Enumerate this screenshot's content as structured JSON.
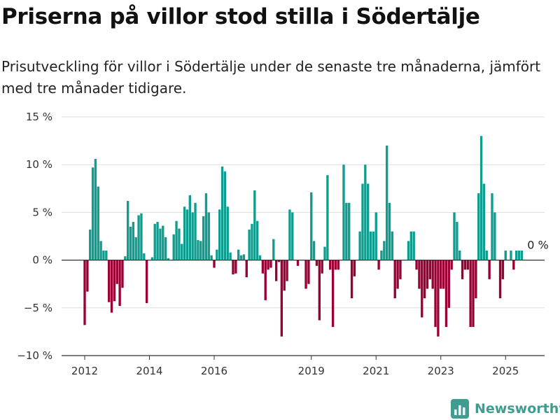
{
  "header": {
    "title": "Priserna på villor stod stilla i Södertälje",
    "subtitle": "Prisutveckling för villor i Södertälje under de senaste tre månaderna, jämfört med tre månader tidigare."
  },
  "brand": {
    "name": "Newsworthy",
    "icon": "bar-chart-logo-icon"
  },
  "colors": {
    "positive": "#109c8f",
    "negative": "#990033",
    "grid": "#dddddd",
    "zero": "#333333"
  },
  "chart_data": {
    "type": "bar",
    "title": "Priserna på villor stod stilla i Södertälje",
    "xlabel": "",
    "ylabel": "",
    "ylim": [
      -10,
      15
    ],
    "yticks": [
      -10,
      -5,
      0,
      5,
      10,
      15
    ],
    "ytick_labels": [
      "−10 %",
      "−5 %",
      "0 %",
      "5 %",
      "10 %",
      "15 %"
    ],
    "xticks": [
      2012,
      2014,
      2016,
      2019,
      2021,
      2023,
      2025
    ],
    "xtick_labels": [
      "2012",
      "2014",
      "2016",
      "2019",
      "2021",
      "2023",
      "2025"
    ],
    "x_start": "2012-01",
    "frequency": "monthly",
    "grid": true,
    "annotation": {
      "text": "0 %",
      "month": "2025-08",
      "value": 0
    },
    "values": [
      -6.8,
      -3.3,
      3.2,
      9.7,
      10.6,
      7.7,
      2.0,
      1.0,
      1.0,
      -4.4,
      -5.5,
      -4.3,
      -2.5,
      -4.8,
      -2.9,
      0.4,
      6.2,
      3.5,
      4.0,
      2.4,
      4.7,
      4.9,
      0.7,
      -4.5,
      0.0,
      0.3,
      3.8,
      4.0,
      3.3,
      3.6,
      2.4,
      0.2,
      0.0,
      2.7,
      4.1,
      3.3,
      1.7,
      5.6,
      5.3,
      6.8,
      5.0,
      6.0,
      2.1,
      2.0,
      4.6,
      7.0,
      5.0,
      0.5,
      -0.8,
      1.1,
      5.3,
      9.8,
      9.3,
      5.6,
      0.8,
      -1.5,
      -1.4,
      1.1,
      0.5,
      0.6,
      -1.8,
      3.2,
      3.8,
      7.3,
      4.1,
      0.5,
      -1.4,
      -4.2,
      -1.0,
      -0.8,
      2.2,
      -2.2,
      -0.2,
      -8.0,
      -3.2,
      -2.2,
      5.3,
      5.0,
      0.0,
      -0.6,
      0.0,
      0.0,
      -3.0,
      -2.5,
      7.1,
      2.0,
      -0.6,
      -6.3,
      -1.4,
      1.4,
      8.9,
      -1.0,
      -7.0,
      -1.0,
      -1.0,
      0.0,
      10.0,
      6.0,
      6.0,
      -4.0,
      -1.7,
      0.0,
      3.0,
      8.0,
      10.0,
      8.0,
      3.0,
      3.0,
      5.0,
      -1.0,
      1.0,
      2.0,
      12.0,
      6.0,
      3.0,
      -4.0,
      -3.0,
      -2.0,
      0.0,
      0.0,
      2.0,
      3.0,
      3.0,
      -1.0,
      -3.0,
      -6.0,
      -4.0,
      -3.0,
      -2.0,
      -3.0,
      -7.0,
      -8.0,
      -3.0,
      -3.0,
      -7.0,
      -5.0,
      -1.0,
      5.0,
      4.0,
      1.0,
      -2.0,
      -1.0,
      -1.0,
      -7.0,
      -7.0,
      -4.0,
      7.0,
      13.0,
      8.0,
      1.0,
      -2.0,
      7.0,
      5.0,
      0.0,
      -4.0,
      -2.0,
      1.0,
      0.0,
      1.0,
      -1.0,
      1.0,
      1.0,
      1.0,
      0.0
    ]
  }
}
